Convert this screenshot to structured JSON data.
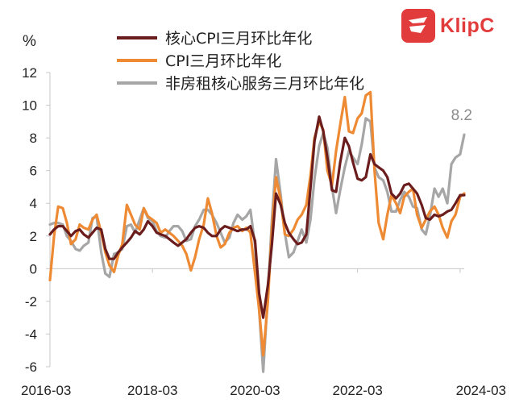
{
  "logo": {
    "name": "KlipC",
    "mark": "c"
  },
  "chart_data": {
    "type": "line",
    "ylabel": "%",
    "ylim": [
      -6,
      12
    ],
    "yticks": [
      -6,
      -4,
      -2,
      0,
      2,
      4,
      6,
      8,
      10,
      12
    ],
    "xlim": [
      2016.17,
      2024.25
    ],
    "xticks": [
      {
        "value": 2016.17,
        "label": "2016-03"
      },
      {
        "value": 2018.17,
        "label": "2018-03"
      },
      {
        "value": 2020.17,
        "label": "2020-03"
      },
      {
        "value": 2022.17,
        "label": "2022-03"
      },
      {
        "value": 2024.17,
        "label": "2024-03"
      }
    ],
    "legend_position": "top-left",
    "annotation": {
      "text": "8.2",
      "x": 2024.25,
      "y": 8.2
    },
    "series": [
      {
        "name": "核心CPI三月环比年化",
        "color": "#6b1d1d",
        "points": [
          [
            2016.17,
            2.1
          ],
          [
            2016.25,
            2.4
          ],
          [
            2016.33,
            2.6
          ],
          [
            2016.42,
            2.6
          ],
          [
            2016.5,
            2.3
          ],
          [
            2016.58,
            2.0
          ],
          [
            2016.67,
            2.3
          ],
          [
            2016.75,
            2.4
          ],
          [
            2016.83,
            2.1
          ],
          [
            2016.92,
            1.9
          ],
          [
            2017.0,
            2.2
          ],
          [
            2017.08,
            2.5
          ],
          [
            2017.17,
            2.4
          ],
          [
            2017.25,
            1.2
          ],
          [
            2017.33,
            0.6
          ],
          [
            2017.42,
            0.6
          ],
          [
            2017.5,
            1.0
          ],
          [
            2017.58,
            1.3
          ],
          [
            2017.67,
            1.6
          ],
          [
            2017.75,
            1.9
          ],
          [
            2017.83,
            2.3
          ],
          [
            2017.92,
            2.1
          ],
          [
            2018.0,
            2.4
          ],
          [
            2018.08,
            2.9
          ],
          [
            2018.17,
            2.6
          ],
          [
            2018.25,
            2.2
          ],
          [
            2018.33,
            2.1
          ],
          [
            2018.42,
            2.0
          ],
          [
            2018.5,
            1.8
          ],
          [
            2018.58,
            1.6
          ],
          [
            2018.67,
            1.4
          ],
          [
            2018.75,
            1.6
          ],
          [
            2018.83,
            1.8
          ],
          [
            2018.92,
            2.2
          ],
          [
            2019.0,
            2.5
          ],
          [
            2019.08,
            2.6
          ],
          [
            2019.17,
            2.5
          ],
          [
            2019.25,
            2.2
          ],
          [
            2019.33,
            2.0
          ],
          [
            2019.42,
            2.0
          ],
          [
            2019.5,
            2.4
          ],
          [
            2019.58,
            2.6
          ],
          [
            2019.67,
            2.5
          ],
          [
            2019.75,
            2.4
          ],
          [
            2019.83,
            2.3
          ],
          [
            2019.92,
            2.4
          ],
          [
            2020.0,
            2.4
          ],
          [
            2020.08,
            2.6
          ],
          [
            2020.17,
            1.7
          ],
          [
            2020.25,
            -1.5
          ],
          [
            2020.33,
            -3.0
          ],
          [
            2020.42,
            -1.0
          ],
          [
            2020.5,
            1.5
          ],
          [
            2020.58,
            4.6
          ],
          [
            2020.67,
            3.9
          ],
          [
            2020.75,
            2.8
          ],
          [
            2020.83,
            2.2
          ],
          [
            2020.92,
            1.8
          ],
          [
            2021.0,
            1.5
          ],
          [
            2021.08,
            1.6
          ],
          [
            2021.17,
            2.1
          ],
          [
            2021.25,
            4.9
          ],
          [
            2021.33,
            7.8
          ],
          [
            2021.42,
            9.3
          ],
          [
            2021.5,
            8.4
          ],
          [
            2021.58,
            6.8
          ],
          [
            2021.67,
            4.8
          ],
          [
            2021.75,
            4.7
          ],
          [
            2021.83,
            6.5
          ],
          [
            2021.92,
            8.0
          ],
          [
            2022.0,
            7.5
          ],
          [
            2022.08,
            6.5
          ],
          [
            2022.17,
            5.5
          ],
          [
            2022.25,
            5.4
          ],
          [
            2022.33,
            5.6
          ],
          [
            2022.42,
            7.0
          ],
          [
            2022.5,
            6.4
          ],
          [
            2022.58,
            6.2
          ],
          [
            2022.67,
            6.0
          ],
          [
            2022.75,
            5.6
          ],
          [
            2022.83,
            4.6
          ],
          [
            2022.92,
            4.3
          ],
          [
            2023.0,
            4.6
          ],
          [
            2023.08,
            5.1
          ],
          [
            2023.17,
            5.2
          ],
          [
            2023.25,
            4.9
          ],
          [
            2023.33,
            4.6
          ],
          [
            2023.42,
            3.9
          ],
          [
            2023.5,
            3.1
          ],
          [
            2023.58,
            3.0
          ],
          [
            2023.67,
            3.3
          ],
          [
            2023.75,
            3.2
          ],
          [
            2023.83,
            3.3
          ],
          [
            2023.92,
            3.5
          ],
          [
            2024.0,
            3.6
          ],
          [
            2024.08,
            4.0
          ],
          [
            2024.17,
            4.5
          ],
          [
            2024.25,
            4.5
          ]
        ]
      },
      {
        "name": "CPI三月环比年化",
        "color": "#ee8a33",
        "points": [
          [
            2016.17,
            -0.7
          ],
          [
            2016.25,
            2.0
          ],
          [
            2016.33,
            3.8
          ],
          [
            2016.42,
            3.7
          ],
          [
            2016.5,
            2.8
          ],
          [
            2016.58,
            1.5
          ],
          [
            2016.67,
            1.8
          ],
          [
            2016.75,
            2.7
          ],
          [
            2016.83,
            2.5
          ],
          [
            2016.92,
            2.4
          ],
          [
            2017.0,
            3.0
          ],
          [
            2017.08,
            3.3
          ],
          [
            2017.17,
            2.2
          ],
          [
            2017.25,
            1.0
          ],
          [
            2017.33,
            0.2
          ],
          [
            2017.42,
            -0.2
          ],
          [
            2017.5,
            0.8
          ],
          [
            2017.58,
            1.5
          ],
          [
            2017.67,
            3.9
          ],
          [
            2017.75,
            3.3
          ],
          [
            2017.83,
            2.7
          ],
          [
            2017.92,
            2.4
          ],
          [
            2018.0,
            3.7
          ],
          [
            2018.08,
            3.2
          ],
          [
            2018.17,
            3.0
          ],
          [
            2018.25,
            2.8
          ],
          [
            2018.33,
            2.2
          ],
          [
            2018.42,
            2.4
          ],
          [
            2018.5,
            2.2
          ],
          [
            2018.58,
            2.0
          ],
          [
            2018.67,
            1.7
          ],
          [
            2018.75,
            1.4
          ],
          [
            2018.83,
            0.9
          ],
          [
            2018.92,
            -0.1
          ],
          [
            2019.0,
            0.7
          ],
          [
            2019.08,
            1.8
          ],
          [
            2019.17,
            2.7
          ],
          [
            2019.25,
            4.3
          ],
          [
            2019.33,
            3.4
          ],
          [
            2019.42,
            2.0
          ],
          [
            2019.5,
            1.3
          ],
          [
            2019.58,
            1.5
          ],
          [
            2019.67,
            2.2
          ],
          [
            2019.75,
            2.5
          ],
          [
            2019.83,
            2.6
          ],
          [
            2019.92,
            2.3
          ],
          [
            2020.0,
            2.5
          ],
          [
            2020.08,
            2.2
          ],
          [
            2020.17,
            -0.3
          ],
          [
            2020.25,
            -2.5
          ],
          [
            2020.33,
            -5.3
          ],
          [
            2020.42,
            -2.0
          ],
          [
            2020.5,
            2.5
          ],
          [
            2020.58,
            5.6
          ],
          [
            2020.67,
            4.2
          ],
          [
            2020.75,
            2.1
          ],
          [
            2020.83,
            2.0
          ],
          [
            2020.92,
            2.4
          ],
          [
            2021.0,
            3.0
          ],
          [
            2021.08,
            3.3
          ],
          [
            2021.17,
            3.9
          ],
          [
            2021.25,
            5.7
          ],
          [
            2021.33,
            8.0
          ],
          [
            2021.42,
            9.0
          ],
          [
            2021.5,
            8.5
          ],
          [
            2021.58,
            6.0
          ],
          [
            2021.67,
            5.1
          ],
          [
            2021.75,
            7.2
          ],
          [
            2021.83,
            8.8
          ],
          [
            2021.92,
            10.5
          ],
          [
            2022.0,
            8.4
          ],
          [
            2022.08,
            8.3
          ],
          [
            2022.17,
            9.2
          ],
          [
            2022.25,
            9.5
          ],
          [
            2022.33,
            10.6
          ],
          [
            2022.42,
            10.8
          ],
          [
            2022.5,
            6.0
          ],
          [
            2022.58,
            2.8
          ],
          [
            2022.67,
            1.8
          ],
          [
            2022.75,
            3.3
          ],
          [
            2022.83,
            4.5
          ],
          [
            2022.92,
            4.0
          ],
          [
            2023.0,
            3.4
          ],
          [
            2023.08,
            4.4
          ],
          [
            2023.17,
            4.7
          ],
          [
            2023.25,
            4.9
          ],
          [
            2023.33,
            3.3
          ],
          [
            2023.42,
            2.5
          ],
          [
            2023.5,
            3.0
          ],
          [
            2023.58,
            3.5
          ],
          [
            2023.67,
            3.8
          ],
          [
            2023.75,
            3.3
          ],
          [
            2023.83,
            2.5
          ],
          [
            2023.92,
            1.9
          ],
          [
            2024.0,
            2.9
          ],
          [
            2024.08,
            3.3
          ],
          [
            2024.17,
            4.4
          ],
          [
            2024.25,
            4.6
          ]
        ]
      },
      {
        "name": "非房租核心服务三月环比年化",
        "color": "#a6a6a6",
        "points": [
          [
            2016.17,
            2.7
          ],
          [
            2016.25,
            2.8
          ],
          [
            2016.33,
            2.8
          ],
          [
            2016.42,
            2.7
          ],
          [
            2016.5,
            2.0
          ],
          [
            2016.58,
            1.7
          ],
          [
            2016.67,
            1.2
          ],
          [
            2016.75,
            1.1
          ],
          [
            2016.83,
            1.4
          ],
          [
            2016.92,
            1.6
          ],
          [
            2017.0,
            3.1
          ],
          [
            2017.08,
            3.2
          ],
          [
            2017.17,
            1.0
          ],
          [
            2017.25,
            -0.3
          ],
          [
            2017.33,
            -0.5
          ],
          [
            2017.42,
            0.9
          ],
          [
            2017.5,
            1.0
          ],
          [
            2017.58,
            1.2
          ],
          [
            2017.67,
            2.6
          ],
          [
            2017.75,
            2.7
          ],
          [
            2017.83,
            2.2
          ],
          [
            2017.92,
            3.0
          ],
          [
            2018.0,
            3.7
          ],
          [
            2018.08,
            3.1
          ],
          [
            2018.17,
            2.9
          ],
          [
            2018.25,
            2.3
          ],
          [
            2018.33,
            2.0
          ],
          [
            2018.42,
            1.9
          ],
          [
            2018.5,
            2.3
          ],
          [
            2018.58,
            2.6
          ],
          [
            2018.67,
            2.6
          ],
          [
            2018.75,
            2.3
          ],
          [
            2018.83,
            1.7
          ],
          [
            2018.92,
            1.8
          ],
          [
            2019.0,
            2.6
          ],
          [
            2019.08,
            3.0
          ],
          [
            2019.17,
            3.6
          ],
          [
            2019.25,
            3.6
          ],
          [
            2019.33,
            3.3
          ],
          [
            2019.42,
            2.8
          ],
          [
            2019.5,
            2.2
          ],
          [
            2019.58,
            1.6
          ],
          [
            2019.67,
            1.9
          ],
          [
            2019.75,
            2.8
          ],
          [
            2019.83,
            3.3
          ],
          [
            2019.92,
            3.0
          ],
          [
            2020.0,
            3.2
          ],
          [
            2020.08,
            3.6
          ],
          [
            2020.17,
            1.4
          ],
          [
            2020.25,
            -2.5
          ],
          [
            2020.33,
            -6.3
          ],
          [
            2020.42,
            -1.5
          ],
          [
            2020.5,
            3.0
          ],
          [
            2020.58,
            6.7
          ],
          [
            2020.67,
            4.5
          ],
          [
            2020.75,
            2.2
          ],
          [
            2020.83,
            0.7
          ],
          [
            2020.92,
            1.0
          ],
          [
            2021.0,
            1.7
          ],
          [
            2021.08,
            2.4
          ],
          [
            2021.17,
            1.6
          ],
          [
            2021.25,
            3.0
          ],
          [
            2021.33,
            5.5
          ],
          [
            2021.42,
            7.5
          ],
          [
            2021.5,
            8.3
          ],
          [
            2021.58,
            7.4
          ],
          [
            2021.67,
            5.0
          ],
          [
            2021.75,
            3.4
          ],
          [
            2021.83,
            4.8
          ],
          [
            2021.92,
            6.2
          ],
          [
            2022.0,
            7.2
          ],
          [
            2022.08,
            6.8
          ],
          [
            2022.17,
            6.4
          ],
          [
            2022.25,
            7.6
          ],
          [
            2022.33,
            9.2
          ],
          [
            2022.42,
            9.0
          ],
          [
            2022.5,
            6.2
          ],
          [
            2022.58,
            5.6
          ],
          [
            2022.67,
            5.4
          ],
          [
            2022.75,
            4.7
          ],
          [
            2022.83,
            3.5
          ],
          [
            2022.92,
            3.5
          ],
          [
            2023.0,
            4.2
          ],
          [
            2023.08,
            4.7
          ],
          [
            2023.17,
            4.4
          ],
          [
            2023.25,
            3.8
          ],
          [
            2023.33,
            3.7
          ],
          [
            2023.42,
            2.4
          ],
          [
            2023.5,
            2.1
          ],
          [
            2023.58,
            3.2
          ],
          [
            2023.67,
            4.9
          ],
          [
            2023.75,
            4.4
          ],
          [
            2023.83,
            4.9
          ],
          [
            2023.92,
            4.0
          ],
          [
            2024.0,
            6.4
          ],
          [
            2024.08,
            6.8
          ],
          [
            2024.17,
            7.0
          ],
          [
            2024.25,
            8.2
          ]
        ]
      }
    ]
  }
}
